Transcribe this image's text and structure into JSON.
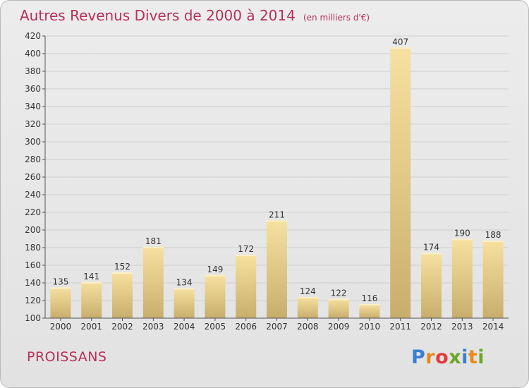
{
  "title": "Autres Revenus Divers de 2000 à 2014",
  "title_unit": "(en milliers d'€)",
  "town": "PROISSANS",
  "logo": {
    "text": "Proxiti",
    "letter_colors": [
      "#3a7fd4",
      "#e8891a",
      "#e23c3c",
      "#6aa823",
      "#3a7fd4",
      "#e8891a",
      "#6aa823"
    ]
  },
  "colors": {
    "title": "#b8305a",
    "bar_light": "#f7e1a0",
    "bar_dark": "#c8ae6c",
    "grid": "#cfcfcf",
    "axis": "#555555"
  },
  "chart_data": {
    "type": "bar",
    "title": "Autres Revenus Divers de 2000 à 2014",
    "categories": [
      "2000",
      "2001",
      "2002",
      "2003",
      "2004",
      "2005",
      "2006",
      "2007",
      "2008",
      "2009",
      "2010",
      "2011",
      "2012",
      "2013",
      "2014"
    ],
    "values": [
      135,
      141,
      152,
      181,
      134,
      149,
      172,
      211,
      124,
      122,
      116,
      407,
      174,
      190,
      188
    ],
    "data_labels": [
      "135",
      "141",
      "152",
      "181",
      "134",
      "149",
      "172",
      "211",
      "124",
      "122",
      "116",
      "407",
      "174",
      "190",
      "188"
    ],
    "ylim": [
      100,
      420
    ],
    "yticks": [
      "100",
      "120",
      "140",
      "160",
      "180",
      "200",
      "220",
      "240",
      "260",
      "280",
      "300",
      "320",
      "340",
      "360",
      "380",
      "400",
      "420"
    ],
    "ytick_values": [
      100,
      120,
      140,
      160,
      180,
      200,
      220,
      240,
      260,
      280,
      300,
      320,
      340,
      360,
      380,
      400,
      420
    ],
    "grid": true,
    "xlabel": "",
    "ylabel": ""
  }
}
